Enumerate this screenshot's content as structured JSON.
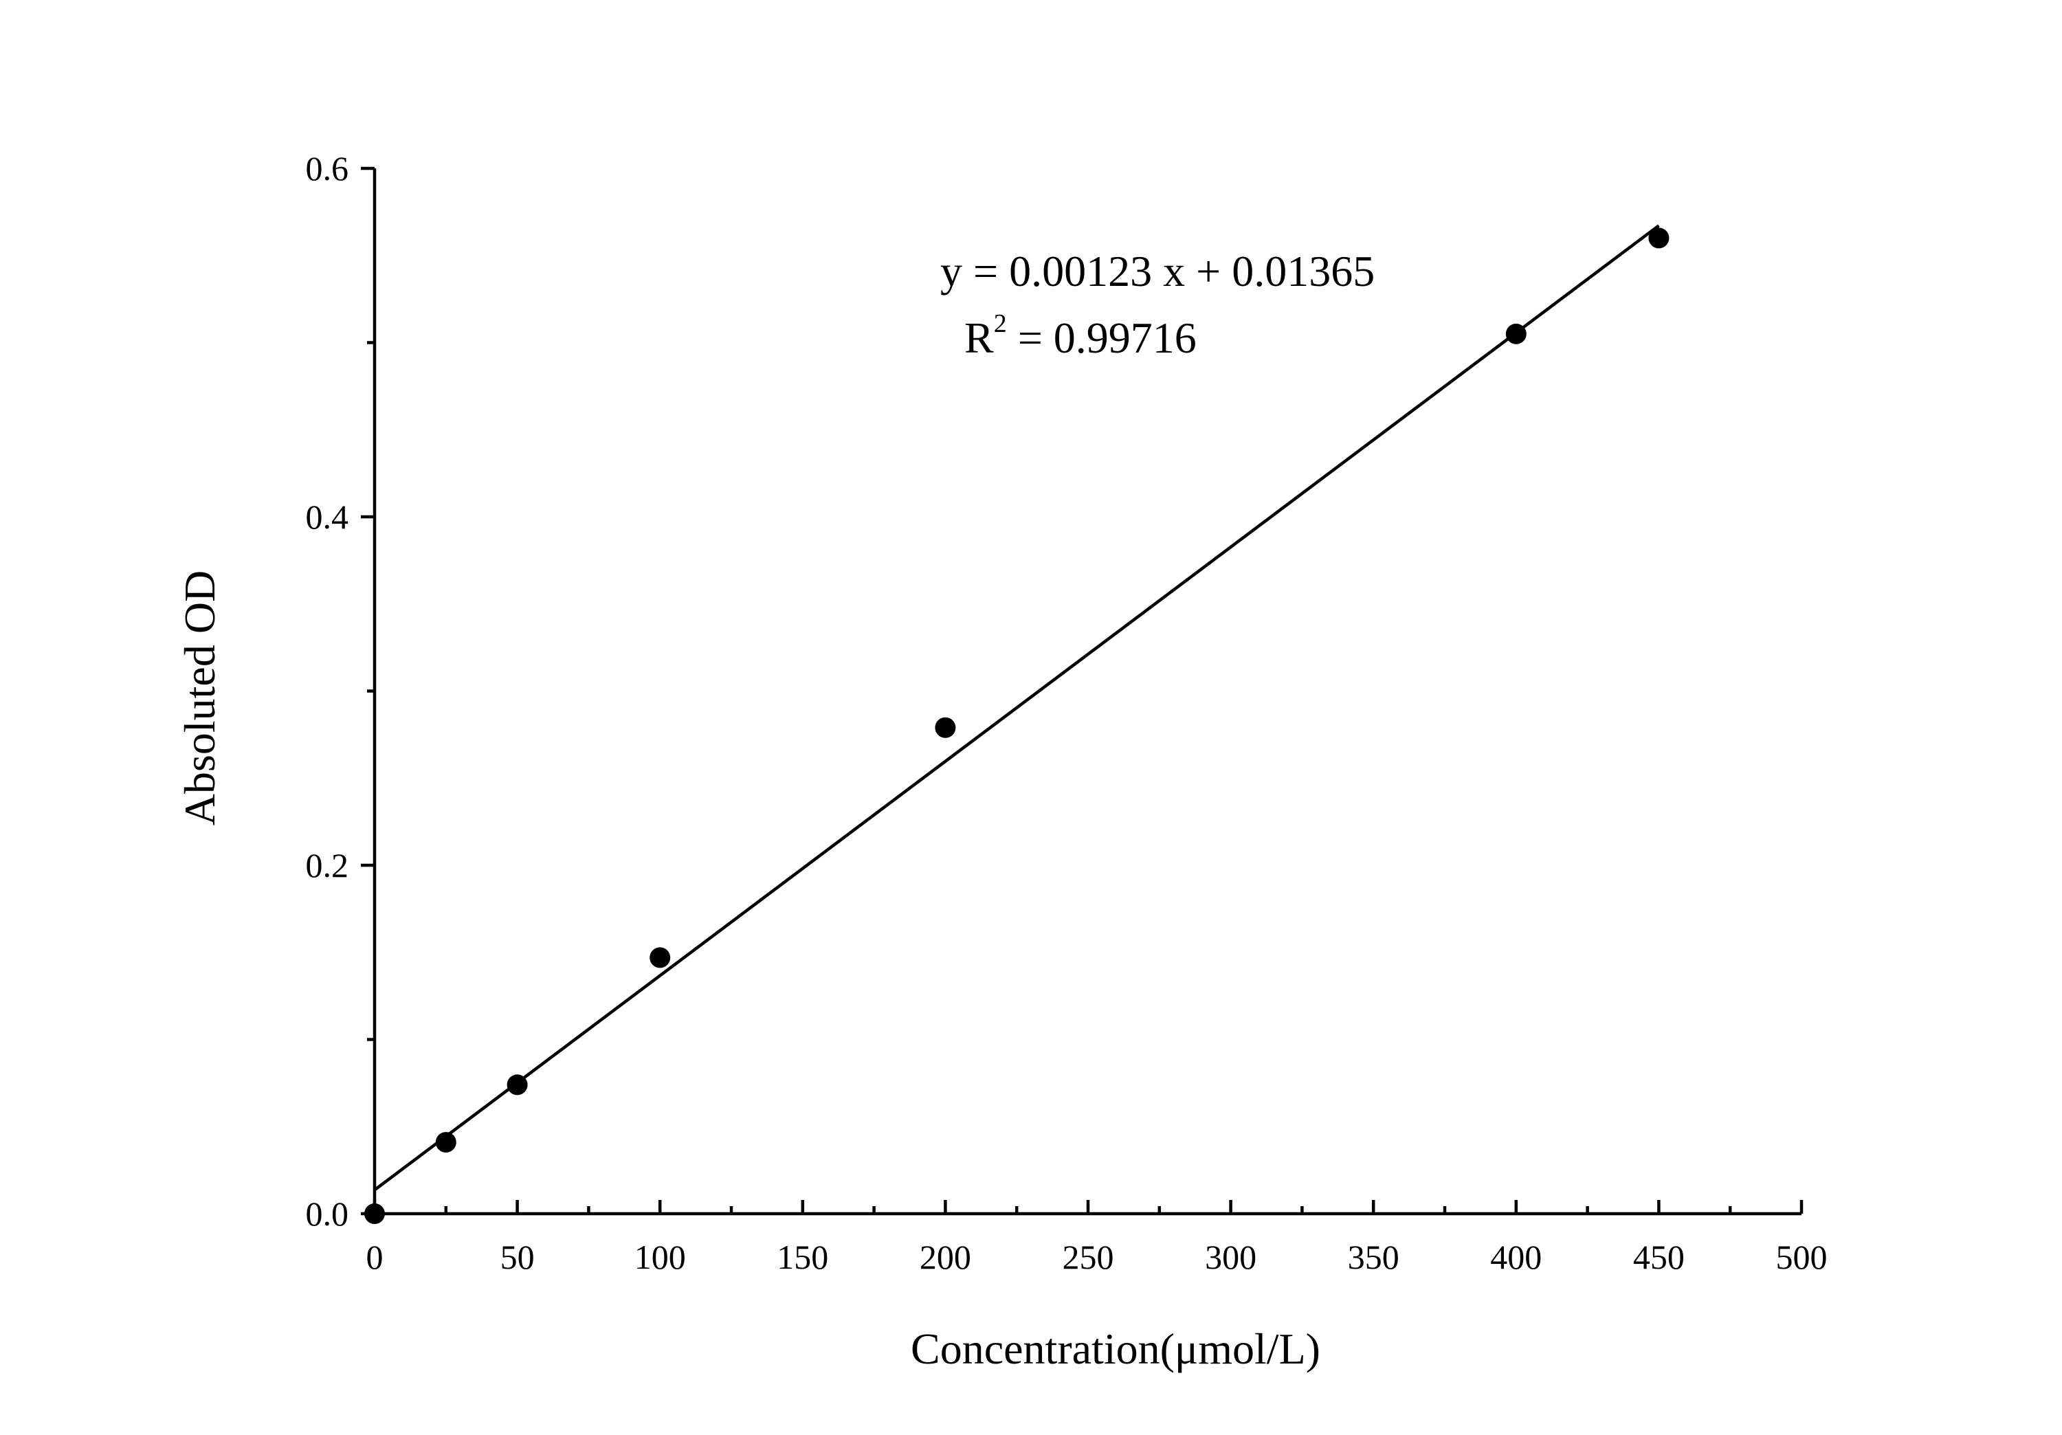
{
  "chart_data": {
    "type": "scatter",
    "xlabel": "Concentration(μmol/L)",
    "ylabel": "Absoluted OD",
    "xlim": [
      0,
      500
    ],
    "ylim": [
      0,
      0.6
    ],
    "x_ticks": [
      "0",
      "50",
      "100",
      "150",
      "200",
      "250",
      "300",
      "350",
      "400",
      "450",
      "500"
    ],
    "y_ticks": [
      "0.0",
      "0.2",
      "0.4",
      "0.6"
    ],
    "x_tick_step_minor": 25,
    "y_tick_step_minor": 0.1,
    "grid": false,
    "series": [
      {
        "x": [
          0,
          25,
          50,
          100,
          200,
          400,
          450
        ],
        "y": [
          0.0,
          0.041,
          0.074,
          0.147,
          0.279,
          0.505,
          0.56
        ]
      }
    ],
    "fit": {
      "slope": 0.00123,
      "intercept": 0.01365,
      "x_range": [
        0,
        450
      ],
      "equation": "y = 0.00123 x + 0.01365",
      "r_squared_prefix": "R",
      "r_squared_exp": "2",
      "r_squared_value": " = 0.99716"
    }
  }
}
